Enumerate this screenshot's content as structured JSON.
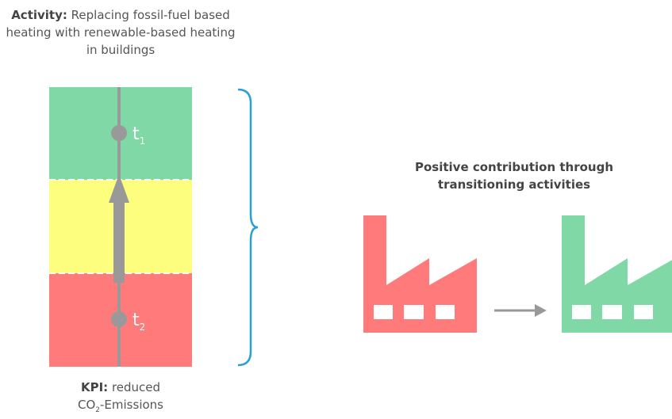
{
  "activity": {
    "label": "Activity:",
    "text": "Replacing fossil-fuel based heating with renewable-based heating in buildings"
  },
  "markers": [
    {
      "label": "t",
      "subscript": "1"
    },
    {
      "label": "t",
      "subscript": "2"
    }
  ],
  "kpi": {
    "label": "KPI:",
    "text": "reduced",
    "co2": "CO",
    "co2_sub": "2",
    "co2_rest": "-Emissions"
  },
  "contribution": "Positive contribution through transitioning activities"
}
